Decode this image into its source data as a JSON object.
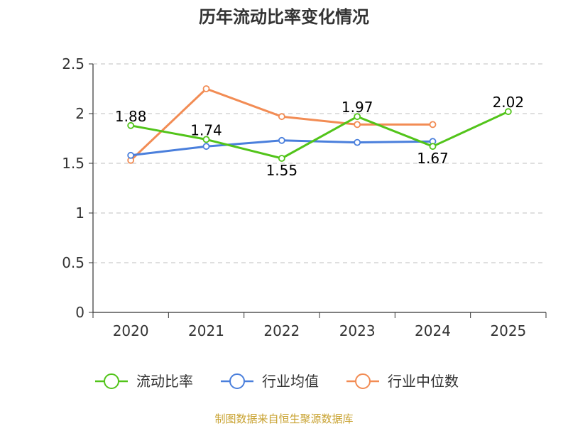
{
  "chart_data": {
    "type": "line",
    "title": "历年流动比率变化情况",
    "categories": [
      "2020",
      "2021",
      "2022",
      "2023",
      "2024",
      "2025"
    ],
    "ylim": [
      0,
      2.5
    ],
    "yticks": [
      "0",
      "0.5",
      "1",
      "1.5",
      "2",
      "2.5"
    ],
    "ytick_values": [
      0,
      0.5,
      1,
      1.5,
      2,
      2.5
    ],
    "grid": "horizontal-dashed",
    "legend_position": "bottom",
    "series": [
      {
        "name": "流动比率",
        "color": "#52c41a",
        "values": [
          1.88,
          1.74,
          1.55,
          1.97,
          1.67,
          2.02
        ],
        "labels": [
          "1.88",
          "1.74",
          "1.55",
          "1.97",
          "1.67",
          "2.02"
        ],
        "show_labels": true
      },
      {
        "name": "行业均值",
        "color": "#4a7fdc",
        "values": [
          1.58,
          1.67,
          1.73,
          1.71,
          1.72,
          null
        ],
        "show_labels": false
      },
      {
        "name": "行业中位数",
        "color": "#f28c54",
        "values": [
          1.53,
          2.25,
          1.97,
          1.89,
          1.89,
          null
        ],
        "show_labels": false
      }
    ],
    "source": "制图数据来自恒生聚源数据库"
  }
}
